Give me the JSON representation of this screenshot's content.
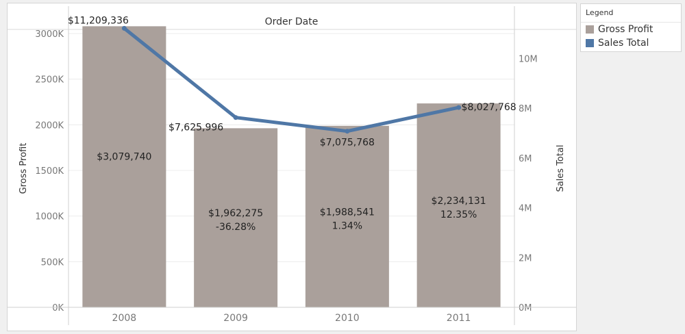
{
  "chart_data": {
    "type": "bar",
    "header": "Order Date",
    "categories": [
      "2008",
      "2009",
      "2010",
      "2011"
    ],
    "bar_series": {
      "name": "Gross Profit",
      "values": [
        3079740,
        1962275,
        1988541,
        2234131
      ],
      "value_labels": [
        "$3,079,740",
        "$1,962,275",
        "$1,988,541",
        "$2,234,131"
      ],
      "pct_labels": [
        "",
        "-36.28%",
        "1.34%",
        "12.35%"
      ]
    },
    "line_series": {
      "name": "Sales Total",
      "values": [
        11209336,
        7625996,
        7075768,
        8027768
      ],
      "value_labels": [
        "$11,209,336",
        "$7,625,996",
        "$7,075,768",
        "$8,027,768"
      ]
    },
    "ylabel_left": "Gross Profit",
    "ylabel_right": "Sales Total",
    "ylim_left": [
      0,
      3300000
    ],
    "ylim_right": [
      0,
      12100000
    ],
    "left_ticks": [
      {
        "value": 0,
        "label": "0K"
      },
      {
        "value": 500000,
        "label": "500K"
      },
      {
        "value": 1000000,
        "label": "1000K"
      },
      {
        "value": 1500000,
        "label": "1500K"
      },
      {
        "value": 2000000,
        "label": "2000K"
      },
      {
        "value": 2500000,
        "label": "2500K"
      },
      {
        "value": 3000000,
        "label": "3000K"
      }
    ],
    "right_ticks": [
      {
        "value": 0,
        "label": "0M"
      },
      {
        "value": 2000000,
        "label": "2M"
      },
      {
        "value": 4000000,
        "label": "4M"
      },
      {
        "value": 6000000,
        "label": "6M"
      },
      {
        "value": 8000000,
        "label": "8M"
      },
      {
        "value": 10000000,
        "label": "10M"
      }
    ],
    "grid": true,
    "colors": {
      "bar": "#aaa09b",
      "line": "#4f77a6"
    }
  },
  "legend": {
    "title": "Legend",
    "items": [
      {
        "label": "Gross Profit",
        "color": "#aaa09b"
      },
      {
        "label": "Sales Total",
        "color": "#4f77a6"
      }
    ]
  }
}
